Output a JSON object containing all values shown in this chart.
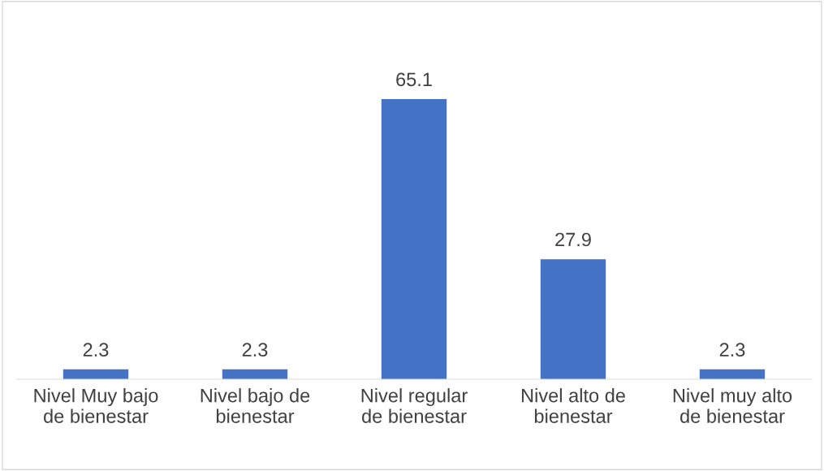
{
  "chart_data": {
    "type": "bar",
    "categories": [
      "Nivel Muy bajo\nde bienestar",
      "Nivel bajo de\nbienestar",
      "Nivel regular\nde bienestar",
      "Nivel alto de\nbienestar",
      "Nivel muy alto\nde bienestar"
    ],
    "values": [
      2.3,
      2.3,
      65.1,
      27.9,
      2.3
    ],
    "color": "#4472c4",
    "data_labels": true
  }
}
